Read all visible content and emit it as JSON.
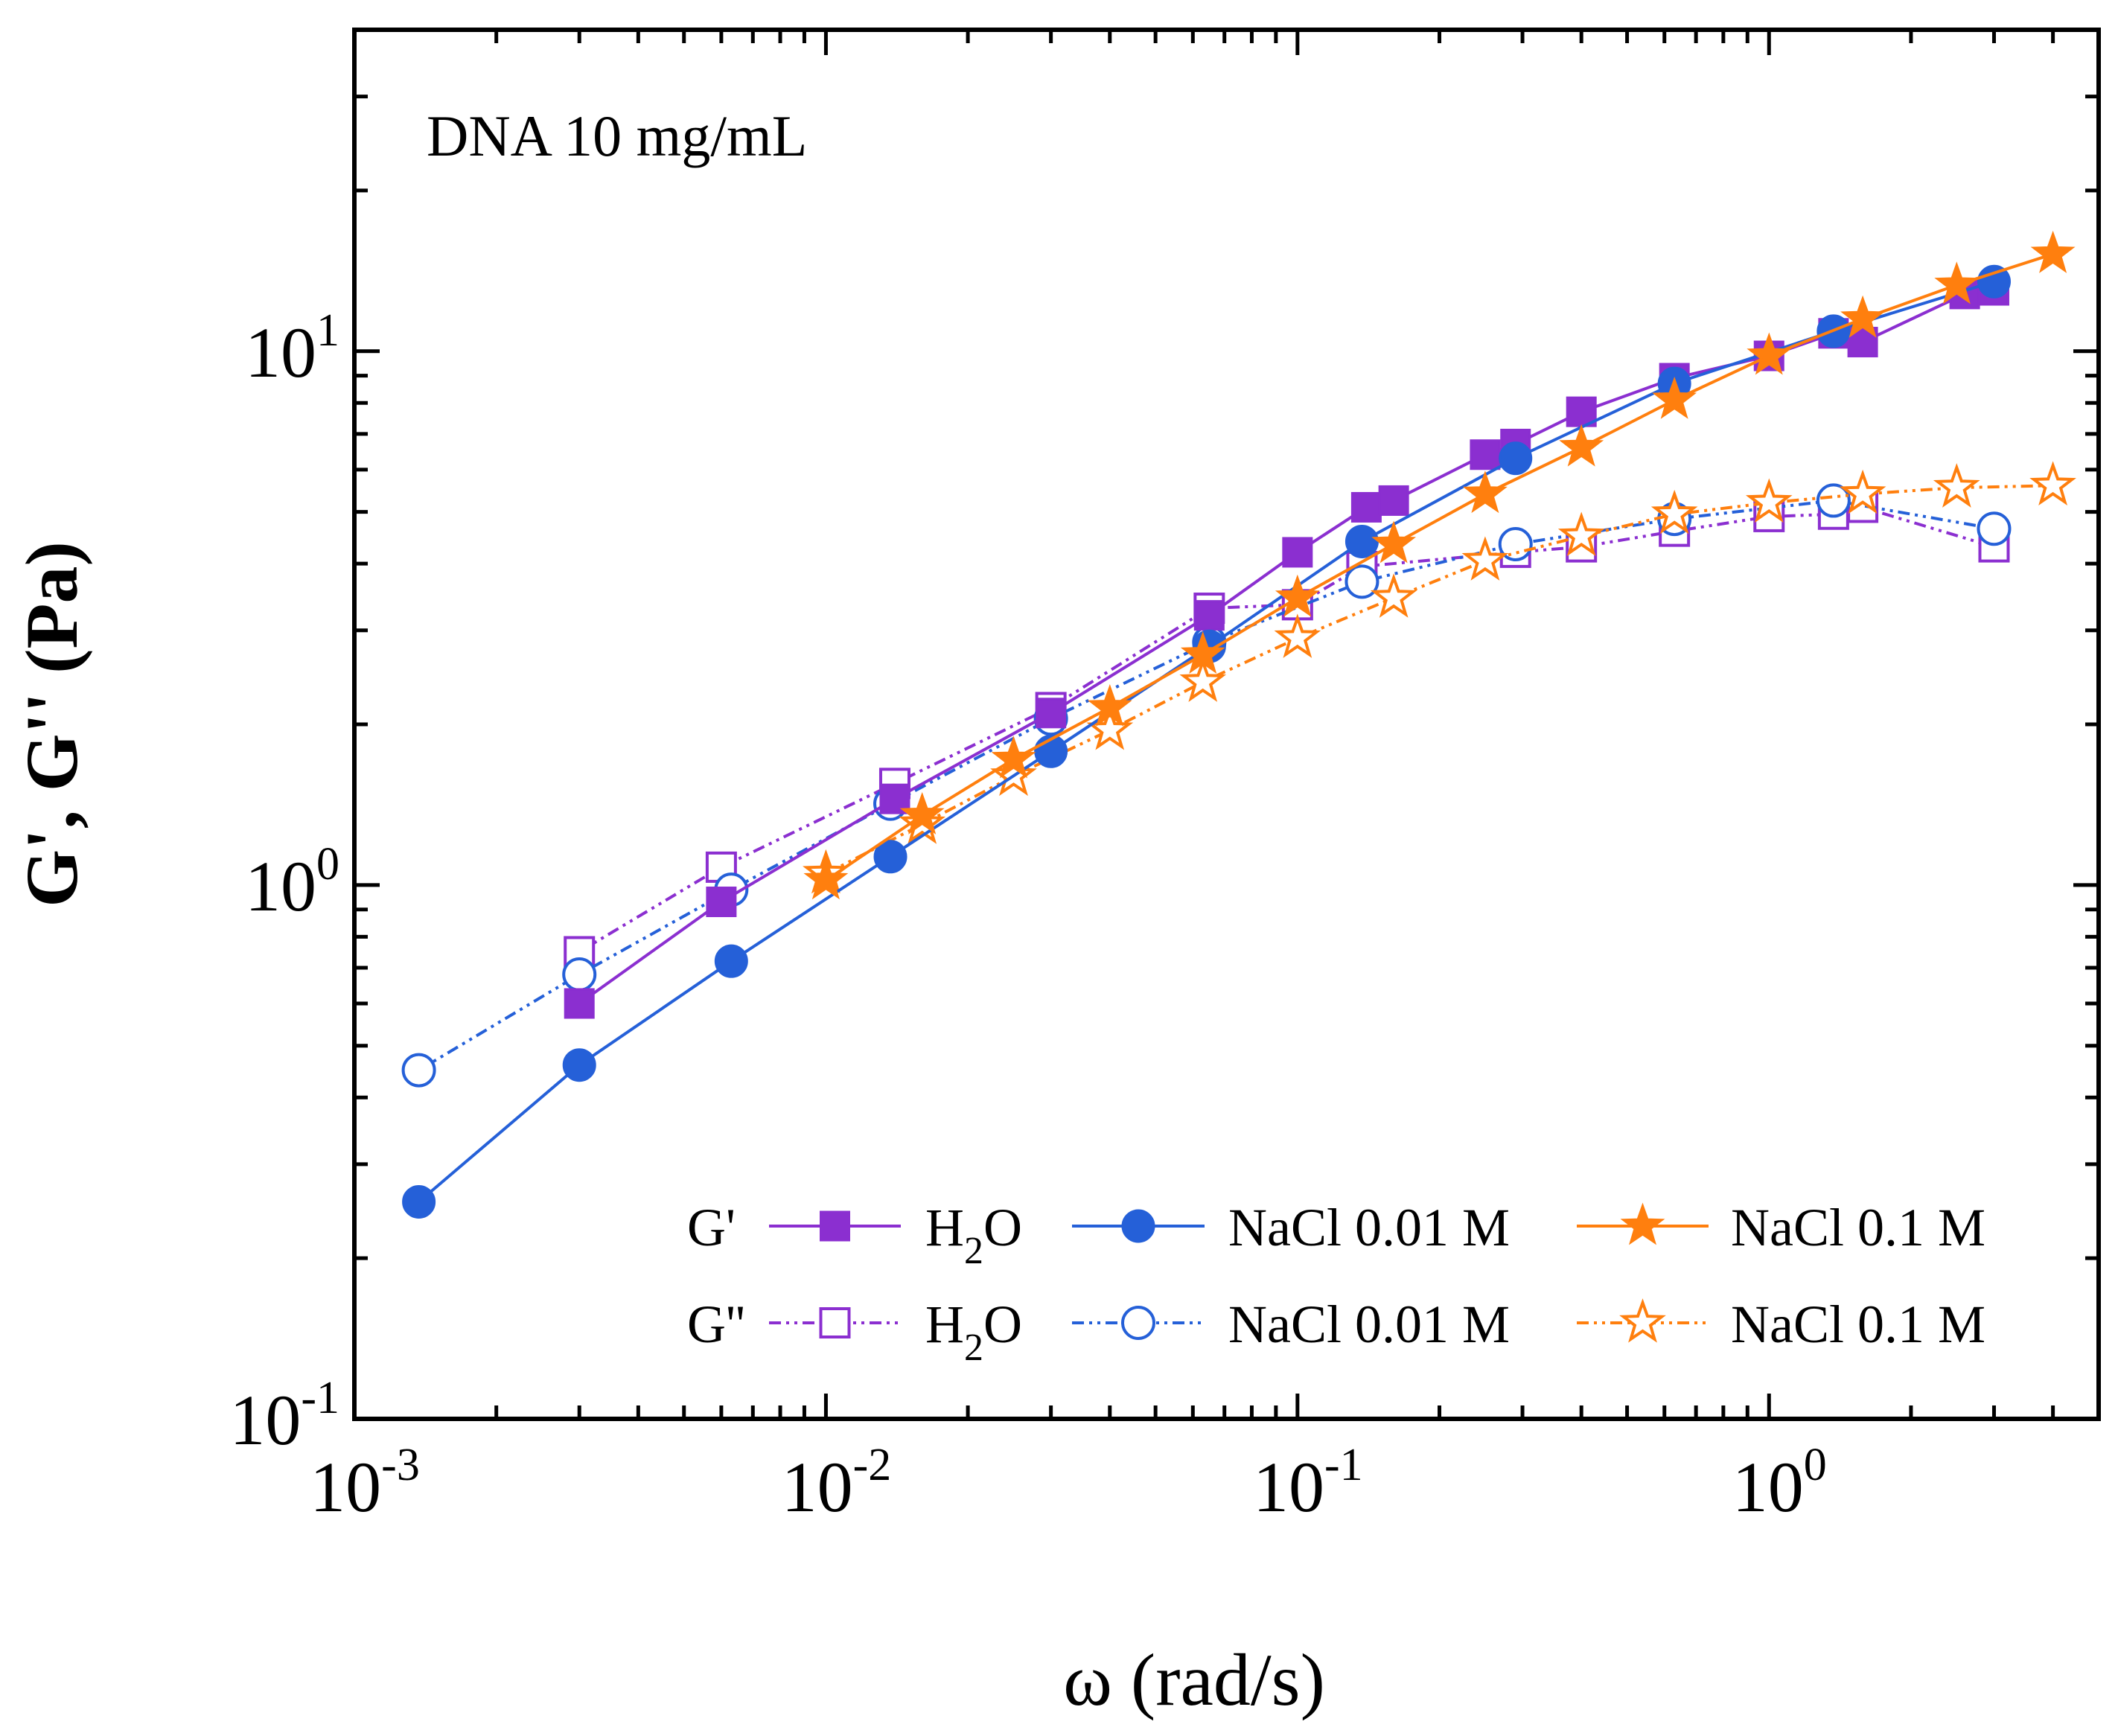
{
  "chart_data": {
    "type": "scatter",
    "scale": "log-log",
    "annotation": "DNA 10 mg/mL",
    "xlabel": "ω (rad/s)",
    "ylabel": "G', G'' (Pa)",
    "xlim": [
      0.001,
      5
    ],
    "ylim": [
      0.1,
      40
    ],
    "x_ticks": [
      {
        "value": 0.001,
        "base": "10",
        "exp": "-3"
      },
      {
        "value": 0.01,
        "base": "10",
        "exp": "-2"
      },
      {
        "value": 0.1,
        "base": "10",
        "exp": "-1"
      },
      {
        "value": 1,
        "base": "10",
        "exp": "0"
      }
    ],
    "y_ticks": [
      {
        "value": 0.1,
        "base": "10",
        "exp": "-1"
      },
      {
        "value": 1,
        "base": "10",
        "exp": "0"
      },
      {
        "value": 10,
        "base": "10",
        "exp": "1"
      }
    ],
    "legend": {
      "location": "lower-right",
      "row_labels": [
        "G'",
        "G''"
      ]
    },
    "series": [
      {
        "name": "H2O",
        "label_main": "H",
        "label_sub": "2",
        "label_tail": "O",
        "quantity": "G'",
        "color": "#8b2fd0",
        "marker": "square",
        "filled": true,
        "line": "solid",
        "x": [
          0.003,
          0.006,
          0.014,
          0.03,
          0.065,
          0.1,
          0.14,
          0.16,
          0.25,
          0.29,
          0.4,
          0.63,
          1.0,
          1.37,
          1.58,
          2.6,
          3.0
        ],
        "y": [
          0.6,
          0.93,
          1.45,
          2.1,
          3.2,
          4.2,
          5.1,
          5.25,
          6.4,
          6.7,
          7.7,
          8.9,
          9.8,
          10.8,
          10.4,
          12.8,
          13.0
        ]
      },
      {
        "name": "NaCl 0.01 M",
        "quantity": "G'",
        "color": "#2560d8",
        "marker": "circle",
        "filled": true,
        "line": "solid",
        "x": [
          0.00137,
          0.003,
          0.0063,
          0.0137,
          0.03,
          0.065,
          0.137,
          0.29,
          0.63,
          1.37,
          3.0
        ],
        "y": [
          0.255,
          0.46,
          0.72,
          1.13,
          1.78,
          2.8,
          4.4,
          6.3,
          8.7,
          10.9,
          13.5
        ]
      },
      {
        "name": "NaCl 0.1 M",
        "quantity": "G'",
        "color": "#ff7f0e",
        "marker": "star",
        "filled": true,
        "line": "solid",
        "x": [
          0.01,
          0.016,
          0.025,
          0.04,
          0.063,
          0.1,
          0.16,
          0.25,
          0.4,
          0.63,
          1.0,
          1.58,
          2.5,
          4.0
        ],
        "y": [
          1.02,
          1.35,
          1.72,
          2.15,
          2.7,
          3.45,
          4.35,
          5.4,
          6.6,
          8.1,
          9.8,
          11.5,
          13.3,
          15.2
        ]
      },
      {
        "name": "H2O",
        "label_main": "H",
        "label_sub": "2",
        "label_tail": "O",
        "quantity": "G''",
        "color": "#8b2fd0",
        "marker": "square",
        "filled": false,
        "line": "dash-dot-dot",
        "x": [
          0.003,
          0.006,
          0.014,
          0.03,
          0.065,
          0.1,
          0.137,
          0.29,
          0.4,
          0.63,
          1.0,
          1.37,
          1.58,
          3.0
        ],
        "y": [
          0.75,
          1.08,
          1.55,
          2.15,
          3.3,
          3.35,
          3.95,
          4.2,
          4.3,
          4.6,
          4.9,
          4.95,
          5.1,
          4.3
        ]
      },
      {
        "name": "NaCl 0.01 M",
        "quantity": "G''",
        "color": "#2560d8",
        "marker": "circle",
        "filled": false,
        "line": "dash-dot-dot",
        "x": [
          0.00137,
          0.003,
          0.0063,
          0.0137,
          0.03,
          0.065,
          0.137,
          0.29,
          0.63,
          1.37,
          3.0
        ],
        "y": [
          0.45,
          0.68,
          0.98,
          1.42,
          2.05,
          2.85,
          3.7,
          4.35,
          4.85,
          5.25,
          4.65
        ]
      },
      {
        "name": "NaCl 0.1 M",
        "quantity": "G''",
        "color": "#ff7f0e",
        "marker": "star",
        "filled": false,
        "line": "dash-dot-dot",
        "x": [
          0.01,
          0.016,
          0.025,
          0.04,
          0.063,
          0.1,
          0.16,
          0.25,
          0.4,
          0.63,
          1.0,
          1.58,
          2.5,
          4.0
        ],
        "y": [
          1.05,
          1.3,
          1.6,
          1.95,
          2.4,
          2.9,
          3.45,
          4.05,
          4.5,
          4.95,
          5.2,
          5.4,
          5.55,
          5.6
        ]
      }
    ]
  }
}
